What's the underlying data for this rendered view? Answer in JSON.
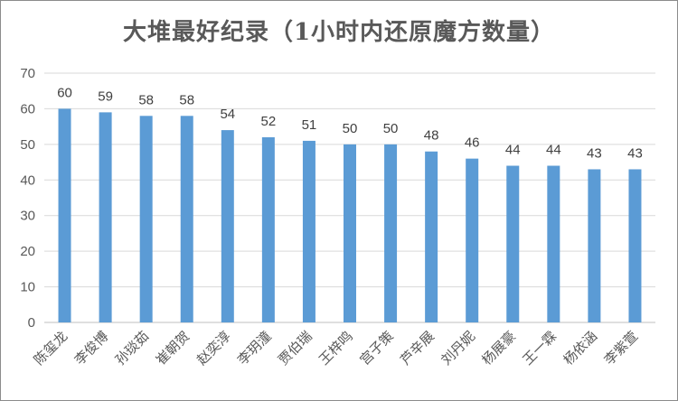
{
  "chart_data": {
    "type": "bar",
    "title": "大堆最好纪录（1小时内还原魔方数量）",
    "xlabel": "",
    "ylabel": "",
    "categories": [
      "陈玺龙",
      "李俊博",
      "孙琰茹",
      "崔朝贺",
      "赵奕淳",
      "李玥潼",
      "贾伯瑞",
      "王梓鸣",
      "宫子策",
      "芦辛展",
      "刘丹妮",
      "杨展豪",
      "王一霖",
      "杨依涵",
      "李紫萱"
    ],
    "values": [
      60,
      59,
      58,
      58,
      54,
      52,
      51,
      50,
      50,
      48,
      46,
      44,
      44,
      43,
      43
    ],
    "ylim": [
      0,
      70
    ],
    "yticks": [
      0,
      10,
      20,
      30,
      40,
      50,
      60,
      70
    ],
    "grid": true,
    "bar_color": "#5b9bd5",
    "grid_color": "#d9d9d9",
    "show_data_labels": true
  }
}
